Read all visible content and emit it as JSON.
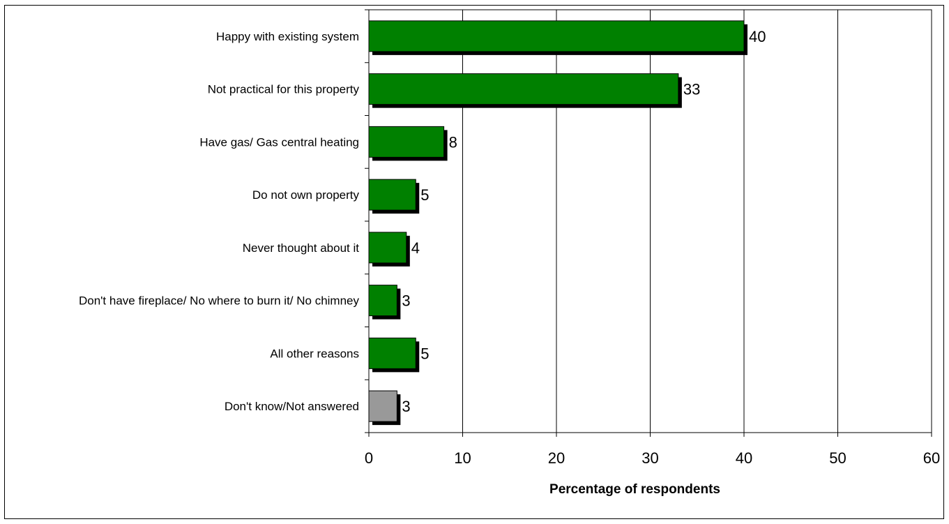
{
  "chart_data": {
    "type": "bar",
    "orientation": "horizontal",
    "categories": [
      "Happy with existing system",
      "Not practical for this property",
      "Have gas/ Gas central heating",
      "Do not own property",
      "Never thought about it",
      "Don't have fireplace/ No where to burn it/ No chimney",
      "All other reasons",
      "Don't know/Not answered"
    ],
    "values": [
      40,
      33,
      8,
      5,
      4,
      3,
      5,
      3
    ],
    "colors": [
      "#008000",
      "#008000",
      "#008000",
      "#008000",
      "#008000",
      "#008000",
      "#008000",
      "#999999"
    ],
    "shadow_color": "#000000",
    "xlim": [
      0,
      60
    ],
    "xticks": [
      0,
      10,
      20,
      30,
      40,
      50,
      60
    ],
    "xlabel": "Percentage of respondents",
    "ylabel": "",
    "title": "",
    "grid": "vertical",
    "legend": "none"
  }
}
